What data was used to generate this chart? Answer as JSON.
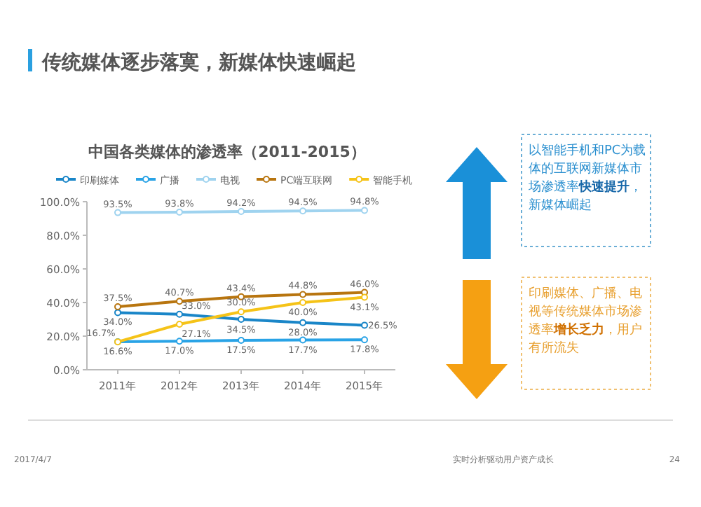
{
  "chart_data": {
    "type": "line",
    "title": "传统媒体逐步落寞，新媒体快速崛起",
    "subtitle": "中国各类媒体的渗透率（2011-2015）",
    "categories": [
      "2011年",
      "2012年",
      "2013年",
      "2014年",
      "2015年"
    ],
    "series": [
      {
        "name": "印刷媒体",
        "color": "#1a86c8",
        "values": [
          34.0,
          33.0,
          30.0,
          28.0,
          26.5
        ],
        "value_labels": [
          "34.0%",
          "33.0%",
          "30.0%",
          "28.0%",
          "26.5%"
        ]
      },
      {
        "name": "广播",
        "color": "#29a3e6",
        "values": [
          16.7,
          17.0,
          17.5,
          17.7,
          17.8
        ],
        "value_labels": [
          "16.7%",
          "17.0%",
          "17.5%",
          "17.7%",
          "17.8%"
        ]
      },
      {
        "name": "电视",
        "color": "#9fd3ef",
        "values": [
          93.5,
          93.8,
          94.2,
          94.5,
          94.8
        ],
        "value_labels": [
          "93.5%",
          "93.8%",
          "94.2%",
          "94.5%",
          "94.8%"
        ]
      },
      {
        "name": "PC端互联网",
        "color": "#b8750f",
        "values": [
          37.5,
          40.7,
          43.4,
          44.8,
          46.0
        ],
        "value_labels": [
          "37.5%",
          "40.7%",
          "43.4%",
          "44.8%",
          "46.0%"
        ]
      },
      {
        "name": "智能手机",
        "color": "#f5c318",
        "values": [
          16.6,
          27.1,
          34.5,
          40.0,
          43.1
        ],
        "value_labels": [
          "16.6%",
          "27.1%",
          "34.5%",
          "40.0%",
          "43.1%"
        ]
      }
    ],
    "ylim": [
      0,
      100
    ],
    "yticks": [
      {
        "value": 0,
        "label": "0.0%"
      },
      {
        "value": 20,
        "label": "20.0%"
      },
      {
        "value": 40,
        "label": "40.0%"
      },
      {
        "value": 60,
        "label": "60.0%"
      },
      {
        "value": 80,
        "label": "80.0%"
      },
      {
        "value": 100,
        "label": "100.0%"
      }
    ],
    "legend": "top",
    "marker": "circle",
    "grid": false,
    "annotations": [
      "以智能手机和PC为载体的互联网新媒体市场渗透率**快速提升**，新媒体崛起",
      "印刷媒体、广播、电视等传统媒体市场渗透率**增长乏力**，用户有所流失",
      "2017/4/7",
      "实时分析驱动用户资产成长",
      "24"
    ]
  }
}
